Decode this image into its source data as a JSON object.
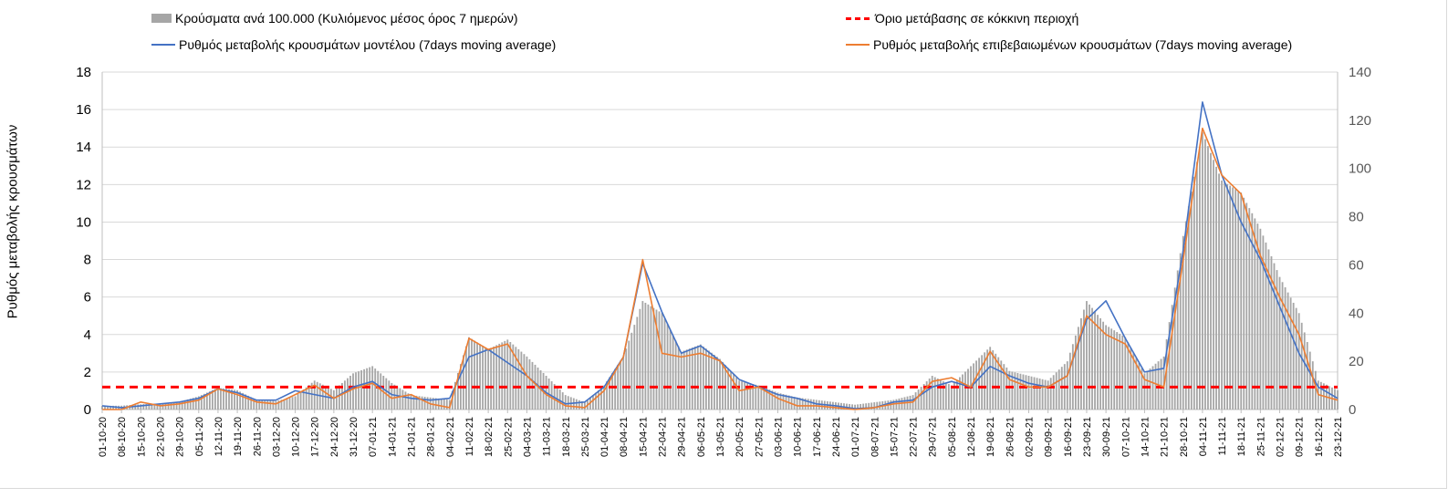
{
  "legend": {
    "bars": "Κρούσματα ανά 100.000 (Κυλιόμενος μέσος όρος 7 ημερών)",
    "threshold": "Όριο μετάβασης σε κόκκινη περιοχή",
    "model": "Ρυθμός μεταβολής κρουσμάτων μοντέλου (7days moving average)",
    "confirmed": "Ρυθμός μεταβολής επιβεβαιωμένων κρουσμάτων (7days moving average)"
  },
  "colors": {
    "bars": "#a6a6a6",
    "threshold": "#ff0000",
    "model": "#4472c4",
    "confirmed": "#ed7d31",
    "grid": "#d9d9d9"
  },
  "chart_data": {
    "type": "bar+line",
    "ylabel": "Ρυθμός μεταβολής κρουσμάτων",
    "ylim": [
      0,
      18
    ],
    "yticks": [
      0,
      2,
      4,
      6,
      8,
      10,
      12,
      14,
      16,
      18
    ],
    "y2lim": [
      0,
      140
    ],
    "y2ticks": [
      0,
      20,
      40,
      60,
      80,
      100,
      120,
      140
    ],
    "grid": true,
    "legend_position": "top",
    "x_labels": [
      "01-10-20",
      "08-10-20",
      "15-10-20",
      "22-10-20",
      "29-10-20",
      "05-11-20",
      "12-11-20",
      "19-11-20",
      "26-11-20",
      "03-12-20",
      "10-12-20",
      "17-12-20",
      "24-12-20",
      "31-12-20",
      "07-01-21",
      "14-01-21",
      "21-01-21",
      "28-01-21",
      "04-02-21",
      "11-02-21",
      "18-02-21",
      "25-02-21",
      "04-03-21",
      "11-03-21",
      "18-03-21",
      "25-03-21",
      "01-04-21",
      "08-04-21",
      "15-04-21",
      "22-04-21",
      "29-04-21",
      "06-05-21",
      "13-05-21",
      "20-05-21",
      "27-05-21",
      "03-06-21",
      "10-06-21",
      "17-06-21",
      "24-06-21",
      "01-07-21",
      "08-07-21",
      "15-07-21",
      "22-07-21",
      "29-07-21",
      "05-08-21",
      "12-08-21",
      "19-08-21",
      "26-08-21",
      "02-09-21",
      "09-09-21",
      "16-09-21",
      "23-09-21",
      "30-09-21",
      "07-10-21",
      "14-10-21",
      "21-10-21",
      "28-10-21",
      "04-11-21",
      "11-11-21",
      "18-11-21",
      "25-11-21",
      "02-12-21",
      "09-12-21",
      "16-12-21",
      "23-12-21"
    ],
    "threshold": 1.2,
    "series": [
      {
        "name": "Κρούσματα ανά 100.000 (Κυλιόμενος μέσος όρος 7 ημερών)",
        "kind": "bar",
        "axis": "right",
        "values": [
          1.5,
          1.6,
          2.2,
          2.5,
          3.2,
          5.5,
          9,
          8,
          4,
          3.5,
          5.5,
          12,
          8,
          15,
          18,
          11,
          6,
          5,
          4,
          30,
          25,
          29,
          22,
          14,
          6,
          3,
          10,
          22,
          45,
          40,
          24,
          27,
          21,
          12,
          10,
          7,
          5,
          4,
          3,
          2,
          3,
          4,
          6,
          14,
          10,
          18,
          26,
          16,
          14,
          12,
          20,
          45,
          35,
          30,
          15,
          22,
          72,
          115,
          95,
          90,
          75,
          55,
          40,
          12,
          8
        ]
      },
      {
        "name": "Ρυθμός μεταβολής κρουσμάτων μοντέλου (7days moving average)",
        "kind": "line",
        "axis": "left",
        "values": [
          0.2,
          0.1,
          0.2,
          0.3,
          0.4,
          0.6,
          1.1,
          0.9,
          0.5,
          0.5,
          1.0,
          0.8,
          0.6,
          1.2,
          1.5,
          0.8,
          0.6,
          0.5,
          0.6,
          2.8,
          3.2,
          2.5,
          1.8,
          0.9,
          0.3,
          0.4,
          1.2,
          2.8,
          7.8,
          5.2,
          3.0,
          3.4,
          2.6,
          1.6,
          1.2,
          0.8,
          0.6,
          0.3,
          0.2,
          0.05,
          0.1,
          0.4,
          0.5,
          1.2,
          1.5,
          1.2,
          2.3,
          1.8,
          1.4,
          1.2,
          1.8,
          4.8,
          5.8,
          3.8,
          2.0,
          2.2,
          8.5,
          16.4,
          12.5,
          10.0,
          8.0,
          5.5,
          3.0,
          1.2,
          0.6
        ]
      },
      {
        "name": "Ρυθμός μεταβολής επιβεβαιωμένων κρουσμάτων (7days moving average)",
        "kind": "line",
        "axis": "left",
        "values": [
          0,
          0,
          0.4,
          0.2,
          0.3,
          0.5,
          1.1,
          0.8,
          0.4,
          0.3,
          0.8,
          1.3,
          0.6,
          1.1,
          1.4,
          0.6,
          0.8,
          0.3,
          0.1,
          3.8,
          3.2,
          3.5,
          1.8,
          0.8,
          0.2,
          0.1,
          1.0,
          2.8,
          8.0,
          3.0,
          2.8,
          3.0,
          2.6,
          1.0,
          1.2,
          0.6,
          0.2,
          0.2,
          0.1,
          0,
          0.1,
          0.3,
          0.4,
          1.5,
          1.7,
          1.2,
          3.1,
          1.6,
          1.2,
          1.2,
          1.8,
          5.0,
          4.0,
          3.5,
          1.6,
          1.2,
          8.0,
          15.0,
          12.5,
          11.5,
          8.2,
          6.0,
          4.0,
          0.8,
          0.5
        ]
      }
    ]
  }
}
